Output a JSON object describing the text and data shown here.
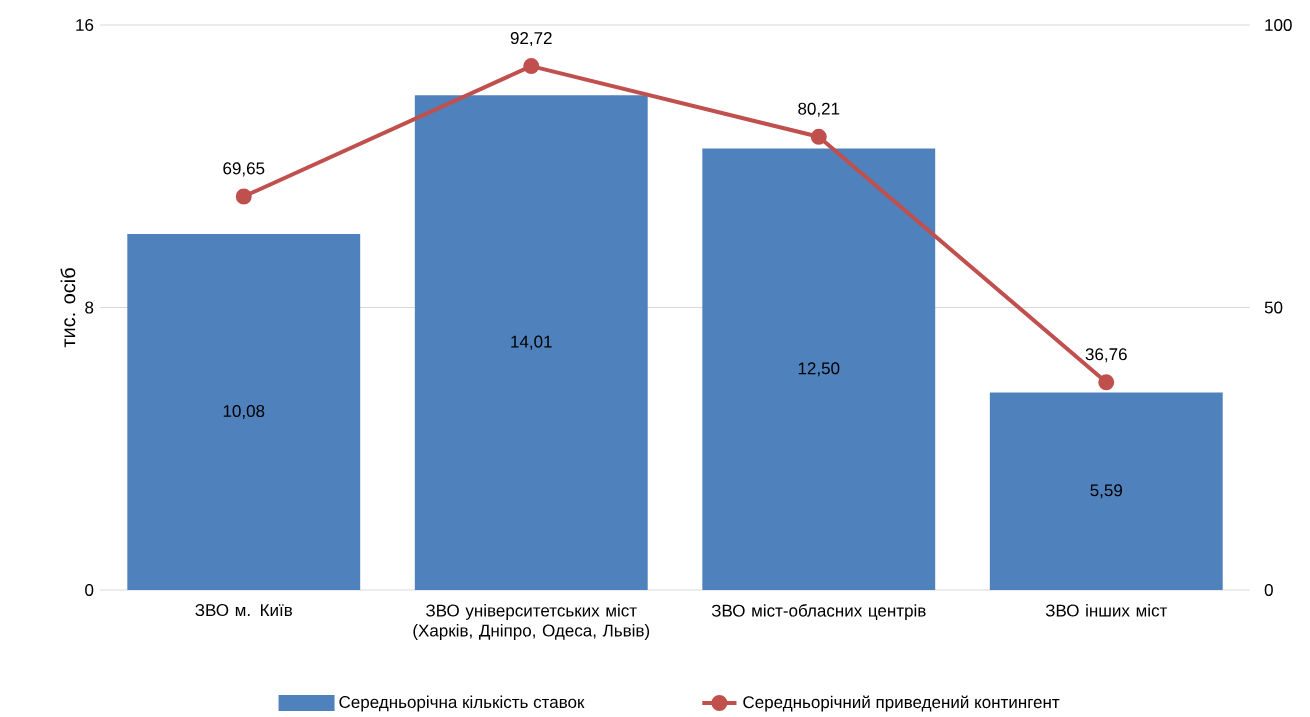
{
  "chart_data": {
    "type": "bar",
    "ylabel": "тис. осіб",
    "categories": [
      "ЗВО м. Київ",
      "ЗВО університетських міст (Харків, Дніпро, Одеса, Львів)",
      "ЗВО міст-обласних центрів",
      "ЗВО інших міст"
    ],
    "series": [
      {
        "name": "Середньорічна кількість ставок",
        "type": "bar",
        "color": "#4f81bd",
        "values": [
          10.08,
          14.01,
          12.5,
          5.59
        ],
        "value_labels": [
          "10,08",
          "14,01",
          "12,50",
          "5,59"
        ]
      },
      {
        "name": "Середньорічний приведений контингент",
        "type": "line",
        "axis": "y2",
        "color": "#c0504d",
        "marker": "circle",
        "values": [
          69.65,
          92.72,
          80.21,
          36.76
        ],
        "value_labels": [
          "69,65",
          "92,72",
          "80,21",
          "36,76"
        ]
      }
    ],
    "ylim": [
      0,
      16
    ],
    "yticks": [
      0,
      8,
      16
    ],
    "y2lim": [
      0,
      100
    ],
    "y2ticks": [
      0,
      50,
      100
    ],
    "grid": "y",
    "legend": "bottom"
  }
}
